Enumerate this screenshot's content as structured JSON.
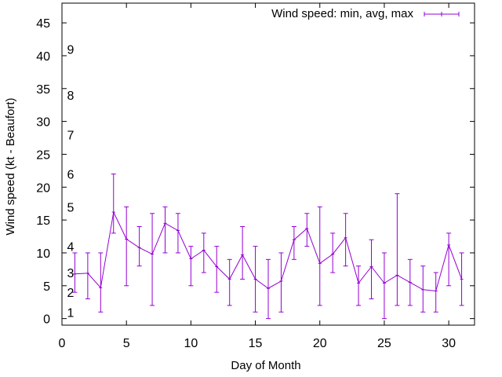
{
  "chart_data": {
    "type": "line",
    "title": "",
    "xlabel": "Day of Month",
    "ylabel": "Wind speed (kt - Beaufort)",
    "xlim": [
      0,
      32
    ],
    "ylim": [
      -1,
      48
    ],
    "xticks": [
      0,
      5,
      10,
      15,
      20,
      25,
      30
    ],
    "yticks": [
      0,
      5,
      10,
      15,
      20,
      25,
      30,
      35,
      40,
      45
    ],
    "grid": false,
    "legend_position": "top-right",
    "series": [
      {
        "name": "Wind speed: min, avg, max",
        "color": "#9400d3",
        "points": [
          {
            "x": 1,
            "avg": 6.8,
            "min": 4,
            "max": 10
          },
          {
            "x": 2,
            "avg": 6.9,
            "min": 3,
            "max": 10
          },
          {
            "x": 3,
            "avg": 4.7,
            "min": 1,
            "max": 10
          },
          {
            "x": 4,
            "avg": 16.2,
            "min": 13,
            "max": 22
          },
          {
            "x": 5,
            "avg": 12.1,
            "min": 5,
            "max": 17
          },
          {
            "x": 6,
            "avg": 10.8,
            "min": 8,
            "max": 14
          },
          {
            "x": 7,
            "avg": 9.8,
            "min": 2,
            "max": 16
          },
          {
            "x": 8,
            "avg": 14.5,
            "min": 10,
            "max": 17
          },
          {
            "x": 9,
            "avg": 13.4,
            "min": 10,
            "max": 16
          },
          {
            "x": 10,
            "avg": 9.1,
            "min": 5,
            "max": 11
          },
          {
            "x": 11,
            "avg": 10.4,
            "min": 7,
            "max": 13
          },
          {
            "x": 12,
            "avg": 7.9,
            "min": 4,
            "max": 11
          },
          {
            "x": 13,
            "avg": 6.0,
            "min": 2,
            "max": 9
          },
          {
            "x": 14,
            "avg": 9.7,
            "min": 6,
            "max": 14
          },
          {
            "x": 15,
            "avg": 6.0,
            "min": 1,
            "max": 11
          },
          {
            "x": 16,
            "avg": 4.6,
            "min": 0,
            "max": 9
          },
          {
            "x": 17,
            "avg": 5.7,
            "min": 1,
            "max": 10
          },
          {
            "x": 18,
            "avg": 12.0,
            "min": 9,
            "max": 14
          },
          {
            "x": 19,
            "avg": 13.7,
            "min": 11,
            "max": 16
          },
          {
            "x": 20,
            "avg": 8.4,
            "min": 2,
            "max": 17
          },
          {
            "x": 21,
            "avg": 9.8,
            "min": 7,
            "max": 13
          },
          {
            "x": 22,
            "avg": 12.3,
            "min": 8,
            "max": 16
          },
          {
            "x": 23,
            "avg": 5.4,
            "min": 2,
            "max": 8
          },
          {
            "x": 24,
            "avg": 7.9,
            "min": 3,
            "max": 12
          },
          {
            "x": 25,
            "avg": 5.4,
            "min": 0,
            "max": 10
          },
          {
            "x": 26,
            "avg": 6.6,
            "min": 2,
            "max": 19
          },
          {
            "x": 27,
            "avg": 5.5,
            "min": 2,
            "max": 9
          },
          {
            "x": 28,
            "avg": 4.4,
            "min": 1,
            "max": 8
          },
          {
            "x": 29,
            "avg": 4.2,
            "min": 1,
            "max": 7
          },
          {
            "x": 30,
            "avg": 11.2,
            "min": 5,
            "max": 13
          },
          {
            "x": 31,
            "avg": 6.0,
            "min": 2,
            "max": 10
          }
        ]
      }
    ],
    "beaufort_labels": [
      {
        "label": "1",
        "y": 1
      },
      {
        "label": "2",
        "y": 4
      },
      {
        "label": "3",
        "y": 7
      },
      {
        "label": "4",
        "y": 11
      },
      {
        "label": "5",
        "y": 17
      },
      {
        "label": "6",
        "y": 22
      },
      {
        "label": "7",
        "y": 28
      },
      {
        "label": "8",
        "y": 34
      },
      {
        "label": "9",
        "y": 41
      }
    ]
  }
}
